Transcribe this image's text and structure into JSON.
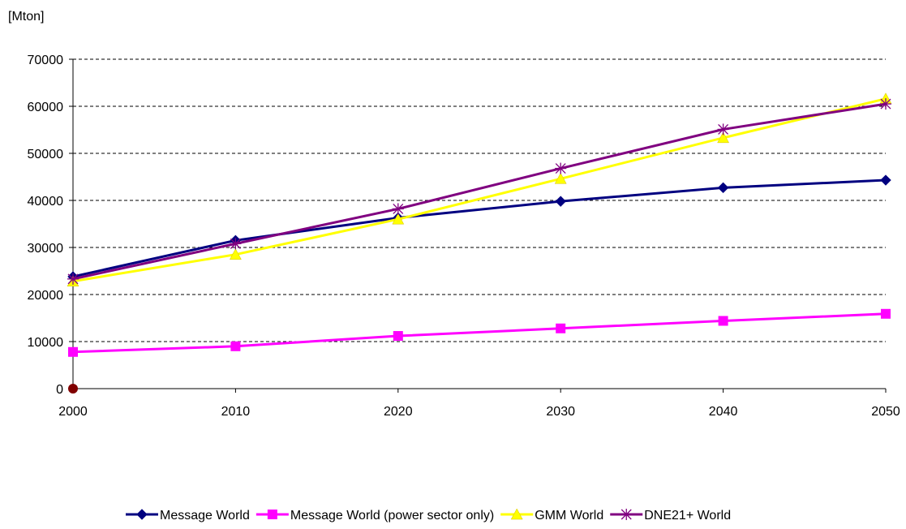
{
  "chart_data": {
    "type": "line",
    "unit_label": "[Mton]",
    "x": [
      2000,
      2010,
      2020,
      2030,
      2040,
      2050
    ],
    "ylim": [
      0,
      70000
    ],
    "yticks": [
      0,
      10000,
      20000,
      30000,
      40000,
      50000,
      60000,
      70000
    ],
    "grid": "horizontal-dashed",
    "legend_position": "bottom",
    "series": [
      {
        "name": "Message World",
        "color": "#000080",
        "marker": "diamond",
        "values": [
          23800,
          31500,
          36300,
          39800,
          42700,
          44300
        ]
      },
      {
        "name": "Message World (power sector only)",
        "color": "#ff00ff",
        "marker": "square",
        "values": [
          7800,
          9000,
          11200,
          12800,
          14400,
          15900
        ]
      },
      {
        "name": "GMM World",
        "color": "#ffff00",
        "marker": "triangle",
        "values": [
          22800,
          28500,
          36000,
          44600,
          53300,
          61600
        ]
      },
      {
        "name": "DNE21+ World",
        "color": "#800080",
        "marker": "asterisk",
        "values": [
          23300,
          30800,
          38200,
          46800,
          55100,
          60500
        ]
      }
    ],
    "origin_marker_color": "#800000"
  }
}
